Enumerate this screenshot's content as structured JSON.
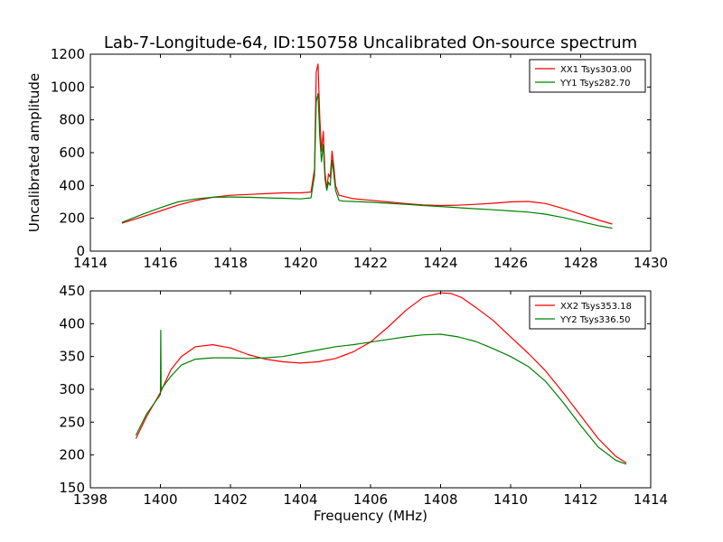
{
  "figure": {
    "title": "Lab-7-Longitude-64, ID:150758 Uncalibrated On-source spectrum",
    "xlabel": "Frequency (MHz)",
    "ylabel": "Uncalibrated amplitude"
  },
  "chart_data": [
    {
      "type": "line",
      "xlim": [
        1414,
        1430
      ],
      "ylim": [
        0,
        1200
      ],
      "xticks": [
        1414,
        1416,
        1418,
        1420,
        1422,
        1424,
        1426,
        1428,
        1430
      ],
      "yticks": [
        0,
        200,
        400,
        600,
        800,
        1000,
        1200
      ],
      "grid": false,
      "legend_position": "top-right",
      "series": [
        {
          "name": "XX1 Tsys303.00",
          "color": "#ff0000",
          "x": [
            1414.9,
            1415.5,
            1416,
            1416.5,
            1417,
            1417.5,
            1418,
            1418.5,
            1419,
            1419.5,
            1420,
            1420.3,
            1420.4,
            1420.45,
            1420.5,
            1420.55,
            1420.6,
            1420.65,
            1420.7,
            1420.75,
            1420.8,
            1420.85,
            1420.9,
            1420.95,
            1421.0,
            1421.1,
            1421.2,
            1421.5,
            1422,
            1422.5,
            1423,
            1423.5,
            1424,
            1424.5,
            1425,
            1425.5,
            1426,
            1426.5,
            1427,
            1427.5,
            1428,
            1428.5,
            1428.9
          ],
          "y": [
            170,
            210,
            245,
            280,
            308,
            328,
            340,
            345,
            350,
            355,
            355,
            360,
            500,
            1090,
            1140,
            820,
            610,
            730,
            480,
            380,
            470,
            450,
            610,
            520,
            400,
            340,
            335,
            320,
            310,
            300,
            290,
            282,
            278,
            280,
            285,
            292,
            300,
            303,
            290,
            260,
            225,
            190,
            165
          ]
        },
        {
          "name": "YY1 Tsys282.70",
          "color": "#008000",
          "x": [
            1414.9,
            1415.5,
            1416,
            1416.5,
            1417,
            1417.5,
            1418,
            1418.5,
            1419,
            1419.5,
            1420,
            1420.3,
            1420.4,
            1420.45,
            1420.5,
            1420.55,
            1420.6,
            1420.65,
            1420.7,
            1420.75,
            1420.8,
            1420.85,
            1420.9,
            1420.95,
            1421.0,
            1421.1,
            1421.2,
            1421.5,
            1422,
            1422.5,
            1423,
            1423.5,
            1424,
            1424.5,
            1425,
            1425.5,
            1426,
            1426.5,
            1427,
            1427.5,
            1428,
            1428.5,
            1428.9
          ],
          "y": [
            175,
            225,
            265,
            300,
            318,
            328,
            330,
            328,
            325,
            322,
            318,
            325,
            460,
            910,
            960,
            700,
            545,
            650,
            440,
            370,
            420,
            400,
            555,
            470,
            370,
            310,
            305,
            303,
            298,
            292,
            285,
            278,
            272,
            265,
            258,
            252,
            245,
            238,
            225,
            205,
            180,
            155,
            140
          ]
        }
      ]
    },
    {
      "type": "line",
      "xlim": [
        1398,
        1414
      ],
      "ylim": [
        150,
        450
      ],
      "xticks": [
        1398,
        1400,
        1402,
        1404,
        1406,
        1408,
        1410,
        1412,
        1414
      ],
      "yticks": [
        150,
        200,
        250,
        300,
        350,
        400,
        450
      ],
      "grid": false,
      "legend_position": "top-right",
      "series": [
        {
          "name": "XX2 Tsys353.18",
          "color": "#ff0000",
          "x": [
            1399.3,
            1399.6,
            1400,
            1400.3,
            1400.6,
            1401,
            1401.5,
            1402,
            1402.5,
            1403,
            1403.5,
            1404,
            1404.5,
            1405,
            1405.5,
            1406,
            1406.5,
            1407,
            1407.5,
            1408,
            1408.3,
            1408.6,
            1409,
            1409.5,
            1410,
            1410.5,
            1411,
            1411.5,
            1412,
            1412.5,
            1413,
            1413.3
          ],
          "y": [
            225,
            258,
            295,
            330,
            350,
            365,
            368,
            363,
            353,
            346,
            342,
            340,
            342,
            347,
            357,
            372,
            395,
            420,
            440,
            447,
            446,
            440,
            425,
            405,
            380,
            355,
            328,
            295,
            260,
            225,
            198,
            188
          ]
        },
        {
          "name": "YY2 Tsys336.50",
          "color": "#008000",
          "x": [
            1399.3,
            1399.6,
            1400,
            1400.01,
            1400.02,
            1400.3,
            1400.6,
            1401,
            1401.5,
            1402,
            1402.5,
            1403,
            1403.5,
            1404,
            1404.5,
            1405,
            1405.5,
            1406,
            1406.5,
            1407,
            1407.5,
            1408,
            1408.5,
            1409,
            1409.5,
            1410,
            1410.5,
            1411,
            1411.5,
            1412,
            1412.5,
            1413,
            1413.3
          ],
          "y": [
            230,
            262,
            292,
            390,
            300,
            320,
            337,
            346,
            348,
            348,
            347,
            348,
            350,
            355,
            360,
            365,
            368,
            372,
            376,
            380,
            383,
            384,
            380,
            373,
            362,
            350,
            335,
            312,
            280,
            245,
            212,
            192,
            186
          ]
        }
      ]
    }
  ]
}
